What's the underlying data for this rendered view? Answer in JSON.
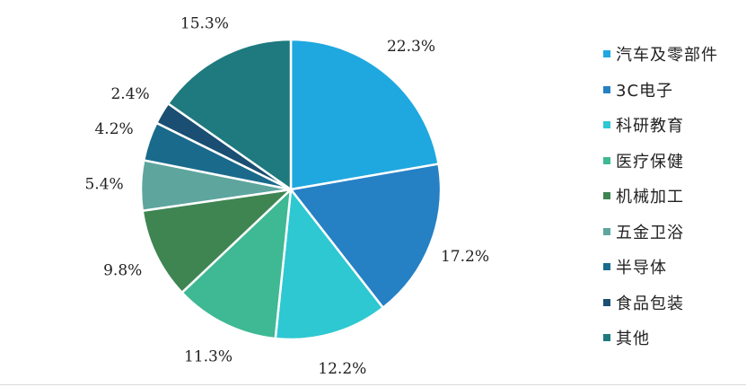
{
  "chart_data": {
    "type": "pie",
    "slices": [
      {
        "label": "汽车及零部件",
        "value": 22.3,
        "display": "22.3%",
        "color": "#1FA8E0"
      },
      {
        "label": "3C电子",
        "value": 17.2,
        "display": "17.2%",
        "color": "#2680C4"
      },
      {
        "label": "科研教育",
        "value": 12.2,
        "display": "12.2%",
        "color": "#2DC8D2"
      },
      {
        "label": "医疗保健",
        "value": 11.3,
        "display": "11.3%",
        "color": "#3FB894"
      },
      {
        "label": "机械加工",
        "value": 9.8,
        "display": "9.8%",
        "color": "#3E8552"
      },
      {
        "label": "五金卫浴",
        "value": 5.4,
        "display": "5.4%",
        "color": "#5EA59E"
      },
      {
        "label": "半导体",
        "value": 4.2,
        "display": "4.2%",
        "color": "#1A6A8C"
      },
      {
        "label": "食品包装",
        "value": 2.4,
        "display": "2.4%",
        "color": "#1A4E72"
      },
      {
        "label": "其他",
        "value": 15.3,
        "display": "15.3%",
        "color": "#1E7A7E"
      }
    ],
    "start_angle": "12 o'clock",
    "direction": "clockwise",
    "legend_position": "right",
    "title": "",
    "data_labels": "outside"
  }
}
